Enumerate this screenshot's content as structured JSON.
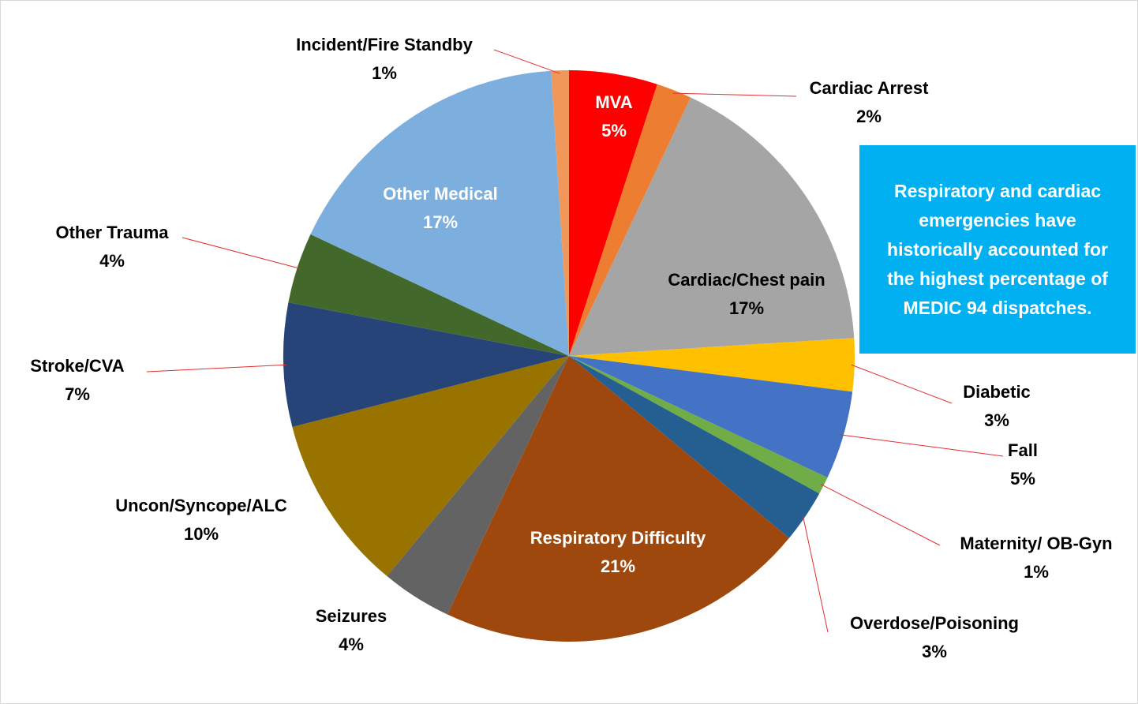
{
  "chart_data": {
    "type": "pie",
    "categories": [
      "MVA",
      "Cardiac Arrest",
      "Cardiac/Chest pain",
      "Diabetic",
      "Fall",
      "Maternity/ OB-Gyn",
      "Overdose/Poisoning",
      "Respiratory Difficulty",
      "Seizures",
      "Uncon/Syncope/ALC",
      "Stroke/CVA",
      "Other Trauma",
      "Other Medical",
      "Incident/Fire Standby"
    ],
    "values": [
      5,
      2,
      17,
      3,
      5,
      1,
      3,
      21,
      4,
      10,
      7,
      4,
      17,
      1
    ],
    "value_labels": [
      "5%",
      "2%",
      "17%",
      "3%",
      "5%",
      "1%",
      "3%",
      "21%",
      "4%",
      "10%",
      "7%",
      "4%",
      "17%",
      "1%"
    ],
    "colors": [
      "#ff0000",
      "#ed7d31",
      "#a5a5a5",
      "#ffc000",
      "#4472c4",
      "#70ad47",
      "#255e91",
      "#9e480e",
      "#636363",
      "#997300",
      "#264478",
      "#43682b",
      "#7cafdd",
      "#f1975a"
    ],
    "annotation": "Respiratory and cardiac emergencies have historically accounted for the highest percentage of MEDIC 94 dispatches."
  }
}
